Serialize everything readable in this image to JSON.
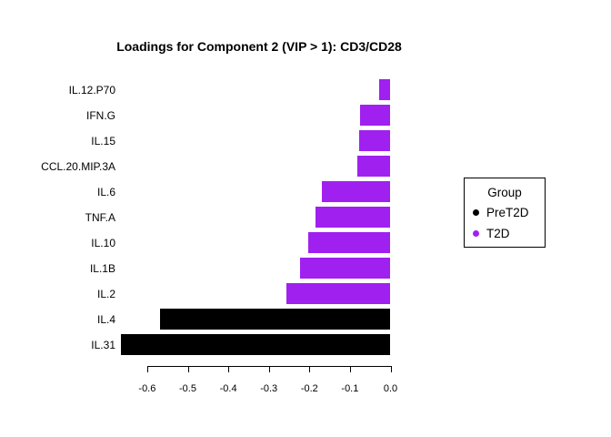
{
  "chart_data": {
    "type": "bar",
    "orientation": "horizontal",
    "title": "Loadings for Component 2 (VIP > 1): CD3/CD28",
    "xlabel": "",
    "ylabel": "",
    "categories": [
      "IL.12.P70",
      "IFN.G",
      "IL.15",
      "CCL.20.MIP.3A",
      "IL.6",
      "TNF.A",
      "IL.10",
      "IL.1B",
      "IL.2",
      "IL.4",
      "IL.31"
    ],
    "values": [
      -0.027,
      -0.076,
      -0.077,
      -0.082,
      -0.169,
      -0.185,
      -0.203,
      -0.223,
      -0.257,
      -0.568,
      -0.665
    ],
    "groups": [
      "T2D",
      "T2D",
      "T2D",
      "T2D",
      "T2D",
      "T2D",
      "T2D",
      "T2D",
      "T2D",
      "PreT2D",
      "PreT2D"
    ],
    "group_colors": {
      "PreT2D": "#000000",
      "T2D": "#A020F0"
    },
    "xlim": [
      -0.67,
      0
    ],
    "x_ticks": [
      -0.6,
      -0.5,
      -0.4,
      -0.3,
      -0.2,
      -0.1,
      0
    ],
    "x_tick_labels": [
      "-0.6",
      "-0.5",
      "-0.4",
      "-0.3",
      "-0.2",
      "-0.1",
      "0.0"
    ],
    "grid": false,
    "background": "#ffffff",
    "legend": {
      "title": "Group",
      "position": "right",
      "entries": [
        {
          "label": "PreT2D",
          "color": "#000000"
        },
        {
          "label": "T2D",
          "color": "#A020F0"
        }
      ]
    }
  }
}
